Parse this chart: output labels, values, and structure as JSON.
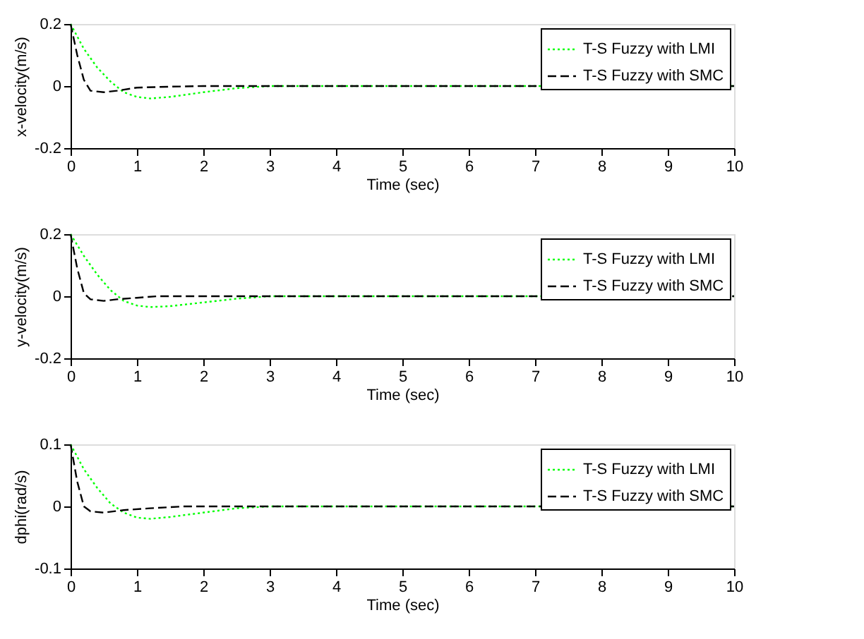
{
  "chart_data": [
    {
      "type": "line",
      "xlabel": "Time (sec)",
      "ylabel": "x-velocity(m/s)",
      "xlim": [
        0,
        10
      ],
      "xticks": [
        0,
        1,
        2,
        3,
        4,
        5,
        6,
        7,
        8,
        9,
        10
      ],
      "ylim": [
        -0.2,
        0.2
      ],
      "yticks": [
        -0.2,
        0,
        0.2
      ],
      "grid": false,
      "legend": "top right",
      "marker": "none",
      "series": [
        {
          "name": "T-S Fuzzy with LMI",
          "color": "#00ff00",
          "line_style": "dotted",
          "x": [
            0,
            0.2,
            0.4,
            0.6,
            0.8,
            1.0,
            1.2,
            1.5,
            2.0,
            2.5,
            3.0,
            10
          ],
          "values": [
            0.2,
            0.12,
            0.06,
            0.015,
            -0.02,
            -0.035,
            -0.04,
            -0.035,
            -0.02,
            -0.007,
            0,
            0
          ]
        },
        {
          "name": "T-S Fuzzy with SMC",
          "color": "#000000",
          "line_style": "dashed",
          "x": [
            0,
            0.1,
            0.2,
            0.3,
            0.5,
            0.7,
            1.0,
            1.5,
            2.0,
            10
          ],
          "values": [
            0.2,
            0.1,
            0.02,
            -0.015,
            -0.02,
            -0.015,
            -0.005,
            -0.002,
            0,
            0
          ]
        }
      ]
    },
    {
      "type": "line",
      "xlabel": "Time (sec)",
      "ylabel": "y-velocity(m/s)",
      "xlim": [
        0,
        10
      ],
      "xticks": [
        0,
        1,
        2,
        3,
        4,
        5,
        6,
        7,
        8,
        9,
        10
      ],
      "ylim": [
        -0.2,
        0.2
      ],
      "yticks": [
        -0.2,
        0,
        0.2
      ],
      "grid": false,
      "legend": "top right",
      "marker": "none",
      "series": [
        {
          "name": "T-S Fuzzy with LMI",
          "color": "#00ff00",
          "line_style": "dotted",
          "x": [
            0,
            0.2,
            0.4,
            0.6,
            0.8,
            1.0,
            1.2,
            1.5,
            2.0,
            2.5,
            3.0,
            10
          ],
          "values": [
            0.2,
            0.13,
            0.07,
            0.02,
            -0.015,
            -0.03,
            -0.035,
            -0.032,
            -0.02,
            -0.008,
            0,
            0
          ]
        },
        {
          "name": "T-S Fuzzy with SMC",
          "color": "#000000",
          "line_style": "dashed",
          "x": [
            0,
            0.1,
            0.2,
            0.3,
            0.5,
            0.7,
            1.0,
            1.3,
            2.0,
            10
          ],
          "values": [
            0.2,
            0.09,
            0.01,
            -0.01,
            -0.015,
            -0.01,
            -0.005,
            0,
            0,
            0
          ]
        }
      ]
    },
    {
      "type": "line",
      "xlabel": "Time (sec)",
      "ylabel": "dphi(rad/s)",
      "xlim": [
        0,
        10
      ],
      "xticks": [
        0,
        1,
        2,
        3,
        4,
        5,
        6,
        7,
        8,
        9,
        10
      ],
      "ylim": [
        -0.1,
        0.1
      ],
      "yticks": [
        -0.1,
        0,
        0.1
      ],
      "grid": false,
      "legend": "top right",
      "marker": "none",
      "series": [
        {
          "name": "T-S Fuzzy with LMI",
          "color": "#00ff00",
          "line_style": "dotted",
          "x": [
            0,
            0.2,
            0.4,
            0.6,
            0.8,
            1.0,
            1.2,
            1.5,
            2.0,
            2.5,
            3.0,
            10
          ],
          "values": [
            0.1,
            0.06,
            0.03,
            0.005,
            -0.01,
            -0.018,
            -0.02,
            -0.017,
            -0.01,
            -0.003,
            0,
            0
          ]
        },
        {
          "name": "T-S Fuzzy with SMC",
          "color": "#000000",
          "line_style": "dashed",
          "x": [
            0,
            0.1,
            0.2,
            0.3,
            0.5,
            0.8,
            1.2,
            1.7,
            10
          ],
          "values": [
            0.1,
            0.04,
            0.0,
            -0.008,
            -0.01,
            -0.006,
            -0.003,
            0,
            0
          ]
        }
      ]
    }
  ]
}
